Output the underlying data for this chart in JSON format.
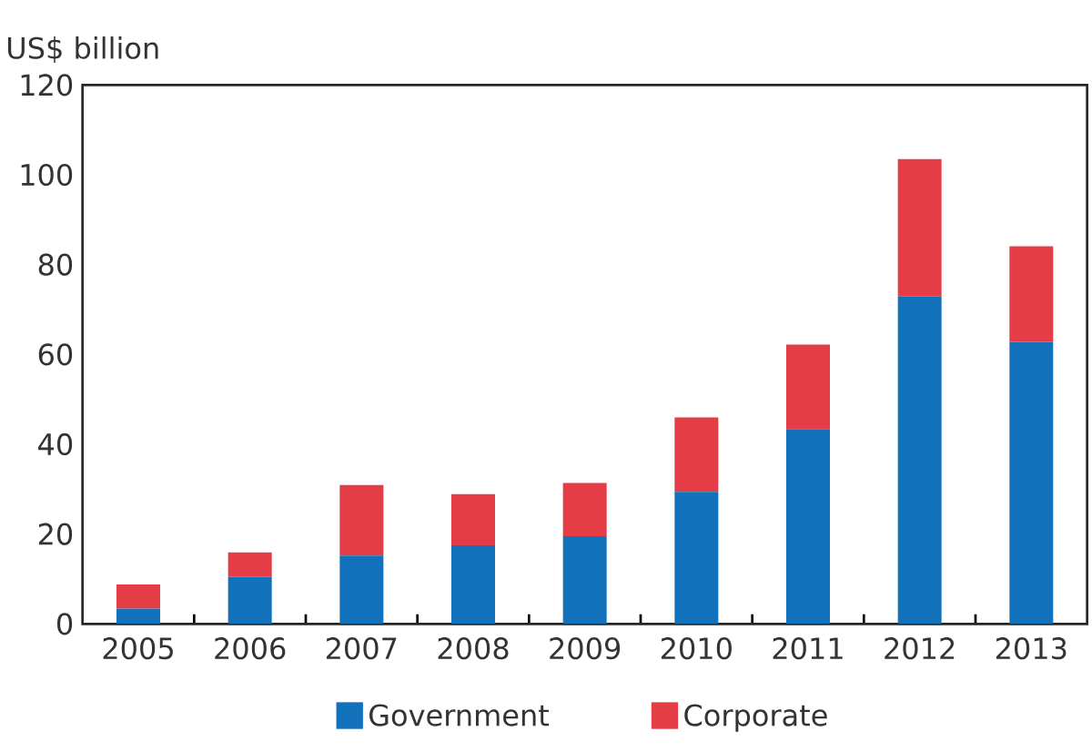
{
  "chart_data": {
    "type": "bar",
    "stacked": true,
    "ylabel": "US$ billion",
    "categories": [
      "2005",
      "2006",
      "2007",
      "2008",
      "2009",
      "2010",
      "2011",
      "2012",
      "2013"
    ],
    "series": [
      {
        "name": "Government",
        "color": "#1172bb",
        "values": [
          3.4,
          10.5,
          15.2,
          17.5,
          19.5,
          29.4,
          43.4,
          72.9,
          62.8
        ]
      },
      {
        "name": "Corporate",
        "color": "#e53d45",
        "values": [
          5.4,
          5.4,
          15.7,
          11.4,
          11.9,
          16.6,
          18.8,
          30.6,
          21.3
        ]
      }
    ],
    "ylim": [
      0,
      120
    ],
    "yticks": [
      0,
      20,
      40,
      60,
      80,
      100,
      120
    ],
    "legend": "bottom"
  }
}
